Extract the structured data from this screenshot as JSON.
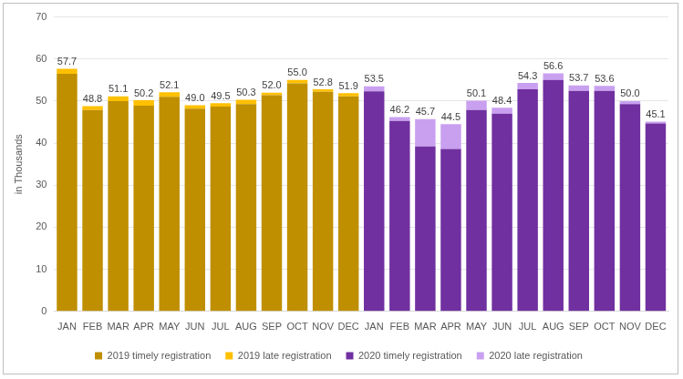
{
  "chart_data": {
    "type": "bar",
    "stacked": true,
    "grid": true,
    "legend": "bottom",
    "y_label": "in Thousands",
    "categories": [
      "JAN",
      "FEB",
      "MAR",
      "APR",
      "MAY",
      "JUN",
      "JUL",
      "AUG",
      "SEP",
      "OCT",
      "NOV",
      "DEC",
      "JAN",
      "FEB",
      "MAR",
      "APR",
      "MAY",
      "JUN",
      "JUL",
      "AUG",
      "SEP",
      "OCT",
      "NOV",
      "DEC"
    ],
    "series": [
      {
        "name": "2019 timely registration",
        "color": "#BF8F00",
        "values": [
          56.5,
          47.9,
          50.0,
          48.9,
          51.0,
          48.2,
          48.7,
          49.3,
          51.4,
          54.2,
          52.2,
          51.1,
          null,
          null,
          null,
          null,
          null,
          null,
          null,
          null,
          null,
          null,
          null,
          null
        ]
      },
      {
        "name": "2019 late registration",
        "color": "#FFC000",
        "values": [
          1.2,
          0.9,
          1.1,
          1.3,
          1.1,
          0.8,
          0.8,
          1.0,
          0.6,
          0.8,
          0.6,
          0.8,
          null,
          null,
          null,
          null,
          null,
          null,
          null,
          null,
          null,
          null,
          null,
          null
        ]
      },
      {
        "name": "2020 timely registration",
        "color": "#7030A0",
        "values": [
          null,
          null,
          null,
          null,
          null,
          null,
          null,
          null,
          null,
          null,
          null,
          null,
          52.3,
          45.3,
          39.2,
          38.6,
          47.9,
          47.0,
          52.8,
          55.0,
          52.4,
          52.4,
          49.3,
          44.7
        ]
      },
      {
        "name": "2020 late registration",
        "color": "#C9A0F0",
        "values": [
          null,
          null,
          null,
          null,
          null,
          null,
          null,
          null,
          null,
          null,
          null,
          null,
          1.2,
          0.9,
          6.5,
          5.9,
          2.2,
          1.4,
          1.5,
          1.6,
          1.3,
          1.2,
          0.7,
          0.4
        ]
      }
    ],
    "totals": [
      57.7,
      48.8,
      51.1,
      50.2,
      52.1,
      49.0,
      49.5,
      50.3,
      52.0,
      55.0,
      52.8,
      51.9,
      53.5,
      46.2,
      45.7,
      44.5,
      50.1,
      48.4,
      54.3,
      56.6,
      53.7,
      53.6,
      50.0,
      45.1
    ],
    "total_labels": [
      "57.7",
      "48.8",
      "51.1",
      "50.2",
      "52.1",
      "49.0",
      "49.5",
      "50.3",
      "52.0",
      "55.0",
      "52.8",
      "51.9",
      "53.5",
      "46.2",
      "45.7",
      "44.5",
      "50.1",
      "48.4",
      "54.3",
      "56.6",
      "53.7",
      "53.6",
      "50.0",
      "45.1"
    ],
    "ylim": [
      0,
      70
    ],
    "yticks": [
      0,
      10,
      20,
      30,
      40,
      50,
      60,
      70
    ]
  }
}
